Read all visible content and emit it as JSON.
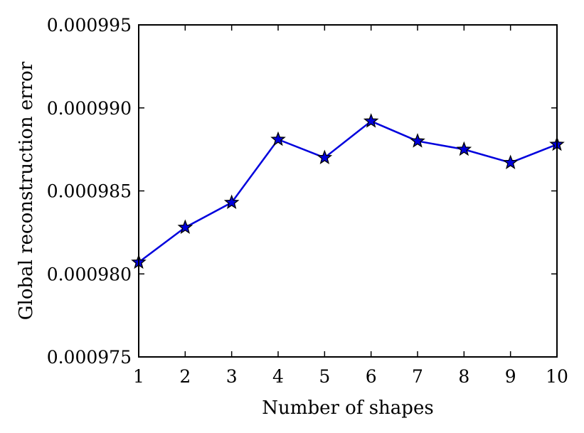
{
  "chart_data": {
    "type": "line",
    "title": "",
    "xlabel": "Number of shapes",
    "ylabel": "Global reconstruction error",
    "xlim": [
      1,
      10
    ],
    "ylim": [
      0.000975,
      0.000995
    ],
    "x_ticks": [
      1,
      2,
      3,
      4,
      5,
      6,
      7,
      8,
      9,
      10
    ],
    "x_tick_labels": [
      "1",
      "2",
      "3",
      "4",
      "5",
      "6",
      "7",
      "8",
      "9",
      "10"
    ],
    "y_ticks": [
      0.000975,
      0.00098,
      0.000985,
      0.00099,
      0.000995
    ],
    "y_tick_labels": [
      "0.000975",
      "0.000980",
      "0.000985",
      "0.000990",
      "0.000995"
    ],
    "grid": false,
    "series": [
      {
        "color": "#0000dd",
        "marker": "star",
        "x": [
          1,
          2,
          3,
          4,
          5,
          6,
          7,
          8,
          9,
          10
        ],
        "values": [
          0.0009807,
          0.0009828,
          0.0009843,
          0.0009881,
          0.000987,
          0.0009892,
          0.000988,
          0.0009875,
          0.0009867,
          0.0009878
        ]
      }
    ]
  }
}
